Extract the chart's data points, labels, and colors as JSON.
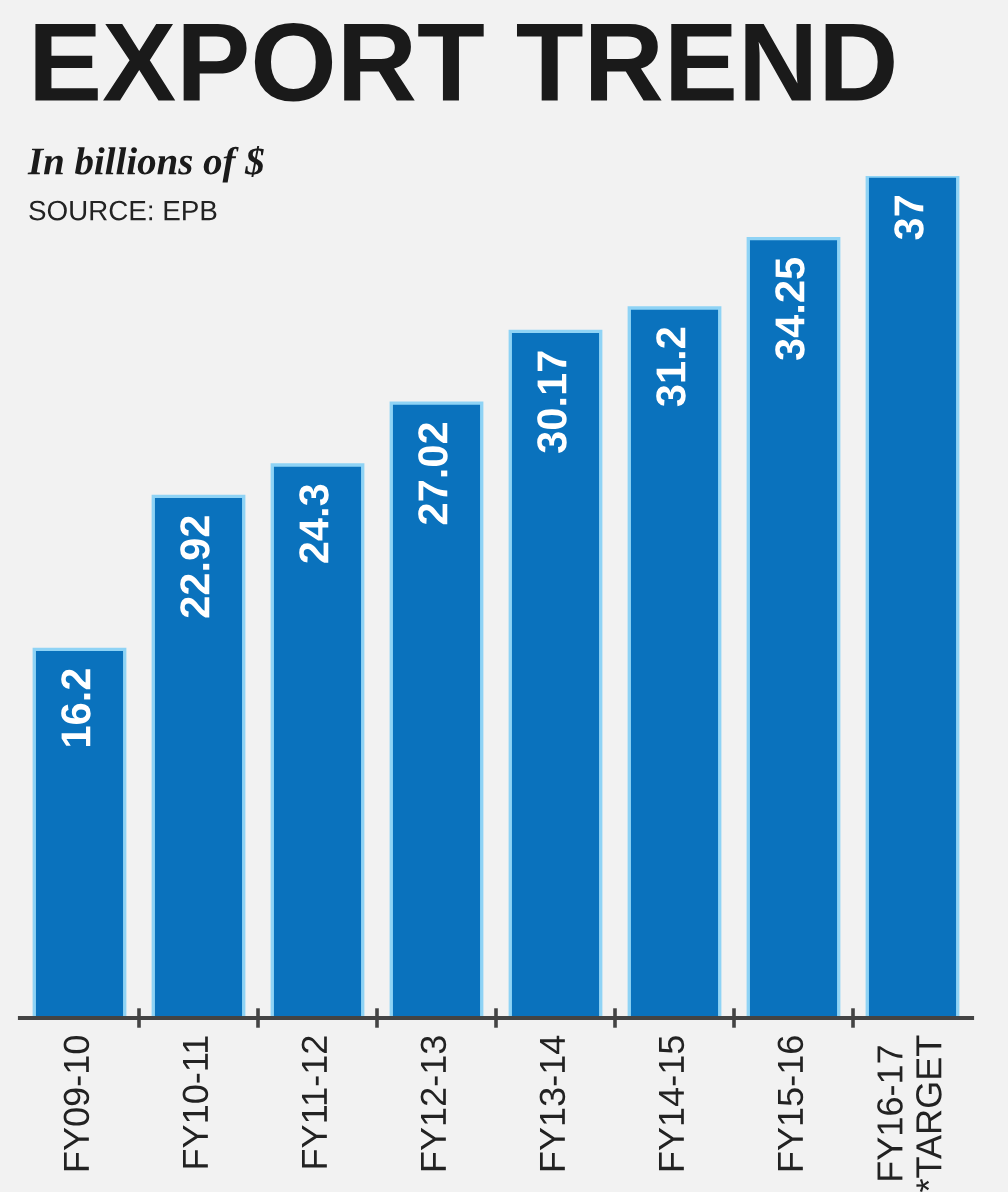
{
  "chart_data": {
    "type": "bar",
    "title": "EXPORT TREND",
    "subtitle": "In billions of $",
    "annotations": [
      "SOURCE: EPB"
    ],
    "categories": [
      "FY09-10",
      "FY10-11",
      "FY11-12",
      "FY12-13",
      "FY13-14",
      "FY14-15",
      "FY15-16",
      "FY16-17\n*TARGET"
    ],
    "values": [
      16.2,
      22.92,
      24.3,
      27.02,
      30.17,
      31.2,
      34.25,
      37
    ],
    "color": "#0a72bd",
    "data_labels": true,
    "grid": false,
    "legend": false
  }
}
